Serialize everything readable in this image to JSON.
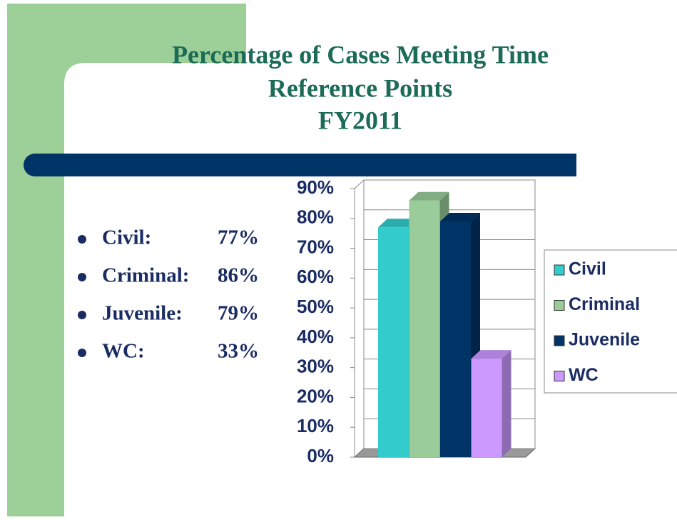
{
  "title_lines": [
    "Percentage of Cases Meeting Time",
    "Reference Points",
    "FY2011"
  ],
  "bullets": [
    {
      "label": "Civil:",
      "value": "77%"
    },
    {
      "label": "Criminal:",
      "value": "86%"
    },
    {
      "label": "Juvenile:",
      "value": "79%"
    },
    {
      "label": "WC:",
      "value": "33%"
    }
  ],
  "chart_data": {
    "type": "bar3d",
    "categories": [
      null
    ],
    "series": [
      {
        "name": "Civil",
        "color": "#33cccc",
        "values": [
          77
        ]
      },
      {
        "name": "Criminal",
        "color": "#99cc99",
        "values": [
          86
        ]
      },
      {
        "name": "Juvenile",
        "color": "#003366",
        "values": [
          79
        ]
      },
      {
        "name": "WC",
        "color": "#cc99ff",
        "values": [
          33
        ]
      }
    ],
    "ylim": [
      0,
      90
    ],
    "yticks": [
      {
        "value": 0,
        "label": "0%"
      },
      {
        "value": 10,
        "label": "10%"
      },
      {
        "value": 20,
        "label": "20%"
      },
      {
        "value": 30,
        "label": "30%"
      },
      {
        "value": 40,
        "label": "40%"
      },
      {
        "value": 50,
        "label": "50%"
      },
      {
        "value": 60,
        "label": "60%"
      },
      {
        "value": 70,
        "label": "70%"
      },
      {
        "value": 80,
        "label": "80%"
      },
      {
        "value": 90,
        "label": "90%"
      }
    ],
    "grid": true,
    "legend": "right"
  }
}
